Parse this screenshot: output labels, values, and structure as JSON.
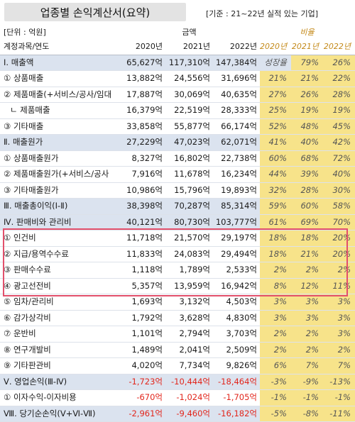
{
  "title": "업종별 손익계산서(요약)",
  "note": "[기준 : 21~22년 실적 있는 기업]",
  "header": {
    "unit": "[단위 : 억원]",
    "amount_group": "금액",
    "ratio_group": "비율",
    "col_label": "계정과목/연도",
    "years": [
      "2020년",
      "2021년",
      "2022년"
    ],
    "ratio_years": [
      "2020년",
      "2021년",
      "2022년"
    ]
  },
  "rows": [
    {
      "label": "Ⅰ. 매출액",
      "v": [
        "65,627억",
        "117,310억",
        "147,384억"
      ],
      "p": [
        "성장율",
        "79%",
        "26%"
      ],
      "sec": true,
      "redp": [
        true,
        true,
        true
      ]
    },
    {
      "label": "① 상품매출",
      "v": [
        "13,882억",
        "24,556억",
        "31,696억"
      ],
      "p": [
        "21%",
        "21%",
        "22%"
      ]
    },
    {
      "label": "② 제품매출(+서비스/공사/임대",
      "v": [
        "17,887억",
        "30,069억",
        "40,635억"
      ],
      "p": [
        "27%",
        "26%",
        "28%"
      ]
    },
    {
      "label": "ㄴ 제품매출",
      "v": [
        "16,379억",
        "22,519억",
        "28,333억"
      ],
      "p": [
        "25%",
        "19%",
        "19%"
      ],
      "ind": true
    },
    {
      "label": "③ 기타매출",
      "v": [
        "33,858억",
        "55,877억",
        "66,174억"
      ],
      "p": [
        "52%",
        "48%",
        "45%"
      ]
    },
    {
      "label": "Ⅱ. 매출원가",
      "v": [
        "27,229억",
        "47,023억",
        "62,071억"
      ],
      "p": [
        "41%",
        "40%",
        "42%"
      ],
      "sec": true
    },
    {
      "label": "① 상품매출원가",
      "v": [
        "8,327억",
        "16,802억",
        "22,738억"
      ],
      "p": [
        "60%",
        "68%",
        "72%"
      ]
    },
    {
      "label": "② 제품매출원가(+서비스/공사",
      "v": [
        "7,916억",
        "11,678억",
        "16,234억"
      ],
      "p": [
        "44%",
        "39%",
        "40%"
      ]
    },
    {
      "label": "③ 기타매출원가",
      "v": [
        "10,986억",
        "15,796억",
        "19,893억"
      ],
      "p": [
        "32%",
        "28%",
        "30%"
      ]
    },
    {
      "label": "Ⅲ. 매출총이익(Ⅰ-Ⅱ)",
      "v": [
        "38,398억",
        "70,287억",
        "85,314억"
      ],
      "p": [
        "59%",
        "60%",
        "58%"
      ],
      "sec": true
    },
    {
      "label": "Ⅳ. 판매비와 관리비",
      "v": [
        "40,121억",
        "80,730억",
        "103,777억"
      ],
      "p": [
        "61%",
        "69%",
        "70%"
      ],
      "sec": true
    },
    {
      "label": "① 인건비",
      "v": [
        "11,718억",
        "21,570억",
        "29,197억"
      ],
      "p": [
        "18%",
        "18%",
        "20%"
      ]
    },
    {
      "label": "② 지급/용역수수료",
      "v": [
        "11,833억",
        "24,083억",
        "29,494억"
      ],
      "p": [
        "18%",
        "21%",
        "20%"
      ]
    },
    {
      "label": "③ 판매수수료",
      "v": [
        "1,118억",
        "1,789억",
        "2,533억"
      ],
      "p": [
        "2%",
        "2%",
        "2%"
      ]
    },
    {
      "label": "④ 광고선전비",
      "v": [
        "5,357억",
        "13,959억",
        "16,942억"
      ],
      "p": [
        "8%",
        "12%",
        "11%"
      ]
    },
    {
      "label": "⑤ 임차/관리비",
      "v": [
        "1,693억",
        "3,132억",
        "4,503억"
      ],
      "p": [
        "3%",
        "3%",
        "3%"
      ]
    },
    {
      "label": "⑥ 감가상각비",
      "v": [
        "1,792억",
        "3,628억",
        "4,830억"
      ],
      "p": [
        "3%",
        "3%",
        "3%"
      ]
    },
    {
      "label": "⑦ 운반비",
      "v": [
        "1,101억",
        "2,794억",
        "3,703억"
      ],
      "p": [
        "2%",
        "2%",
        "3%"
      ]
    },
    {
      "label": "⑧ 연구개발비",
      "v": [
        "1,489억",
        "2,041억",
        "2,509억"
      ],
      "p": [
        "2%",
        "2%",
        "2%"
      ]
    },
    {
      "label": "⑨ 기타판관비",
      "v": [
        "4,020억",
        "7,734억",
        "9,826억"
      ],
      "p": [
        "6%",
        "7%",
        "7%"
      ]
    },
    {
      "label": "Ⅴ. 영업손익(Ⅲ-Ⅳ)",
      "v": [
        "-1,723억",
        "-10,444억",
        "-18,464억"
      ],
      "p": [
        "-3%",
        "-9%",
        "-13%"
      ],
      "sec": true,
      "neg": true
    },
    {
      "label": "① 이자수익-이자비용",
      "v": [
        "-670억",
        "-1,024억",
        "-1,705억"
      ],
      "p": [
        "-1%",
        "-1%",
        "-1%"
      ],
      "neg": true
    },
    {
      "label": "Ⅷ. 당기순손익(Ⅴ+Ⅵ-Ⅶ)",
      "v": [
        "-2,961억",
        "-9,460억",
        "-16,182억"
      ],
      "p": [
        "-5%",
        "-8%",
        "-11%"
      ],
      "sec": true,
      "neg": true
    }
  ]
}
